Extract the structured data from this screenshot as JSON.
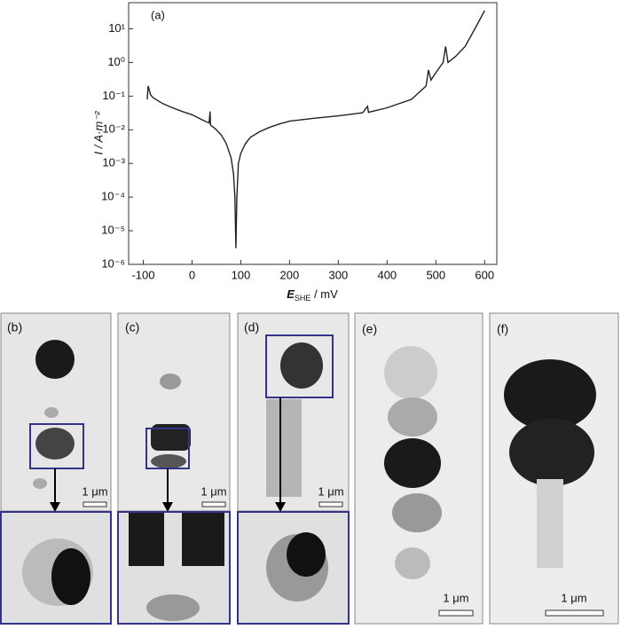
{
  "chart_data": {
    "type": "line",
    "annotation": "(a)",
    "y_label": "I / A·m⁻²",
    "x_label": {
      "symbol": "E",
      "subscript": "SHE",
      "unit": " / mV"
    },
    "x": [
      -92,
      -90,
      -85,
      -80,
      -60,
      -40,
      -20,
      0,
      20,
      35,
      37,
      38,
      50,
      60,
      70,
      80,
      85,
      88,
      90,
      92,
      95,
      100,
      110,
      120,
      140,
      160,
      180,
      200,
      250,
      300,
      350,
      360,
      362,
      400,
      450,
      480,
      485,
      490,
      500,
      515,
      520,
      525,
      540,
      560,
      580,
      600
    ],
    "values": [
      0.08,
      0.2,
      0.11,
      0.09,
      0.06,
      0.045,
      0.035,
      0.028,
      0.02,
      0.016,
      0.035,
      0.014,
      0.01,
      0.007,
      0.004,
      0.0015,
      0.0005,
      0.0001,
      3e-06,
      0.0001,
      0.001,
      0.002,
      0.004,
      0.006,
      0.009,
      0.012,
      0.015,
      0.018,
      0.022,
      0.026,
      0.032,
      0.05,
      0.033,
      0.045,
      0.08,
      0.2,
      0.6,
      0.3,
      0.5,
      1,
      3,
      1,
      1.5,
      3,
      10,
      35
    ],
    "color": "#222222",
    "xlim": [
      -130,
      625
    ],
    "xticks": [
      -100,
      0,
      100,
      200,
      300,
      400,
      500,
      600
    ],
    "ylim": [
      1e-06,
      60
    ],
    "log_y": true,
    "yticks": [
      {
        "value": 1e-06,
        "label": "10⁻⁶"
      },
      {
        "value": 1e-05,
        "label": "10⁻⁵"
      },
      {
        "value": 0.0001,
        "label": "10⁻⁴"
      },
      {
        "value": 0.001,
        "label": "10⁻³"
      },
      {
        "value": 0.01,
        "label": "10⁻²"
      },
      {
        "value": 0.1,
        "label": "10⁻¹"
      },
      {
        "value": 1,
        "label": "10⁰"
      },
      {
        "value": 10,
        "label": "10¹"
      }
    ]
  },
  "panels": [
    {
      "label": "(b)",
      "scale_bar": "1 μm"
    },
    {
      "label": "(c)",
      "scale_bar": "1 μm"
    },
    {
      "label": "(d)",
      "scale_bar": "1 μm"
    },
    {
      "label": "(e)",
      "scale_bar": "1 μm"
    },
    {
      "label": "(f)",
      "scale_bar": "1 μm"
    }
  ]
}
